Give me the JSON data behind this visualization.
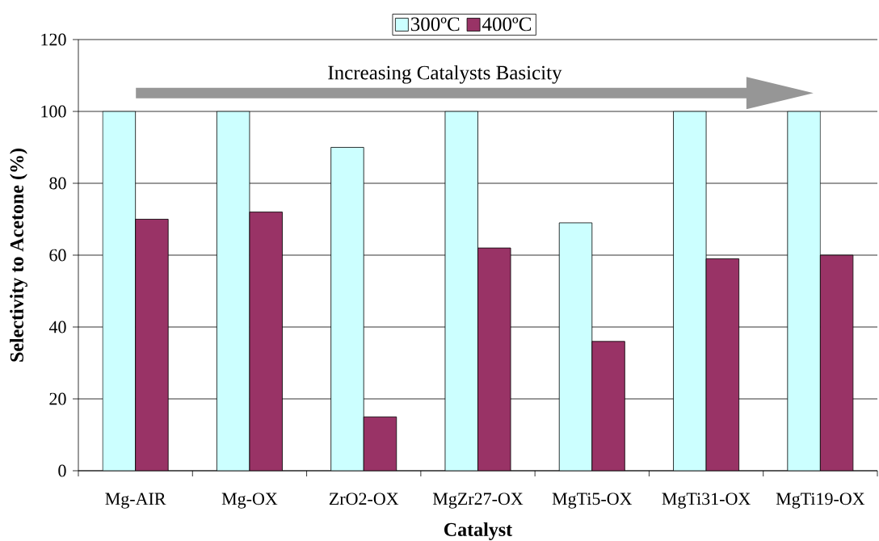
{
  "chart_data": {
    "type": "bar",
    "xlabel": "Catalyst",
    "ylabel": "Selectivity to Acetone (%)",
    "categories": [
      "Mg-AIR",
      "Mg-OX",
      "ZrO2-OX",
      "MgZr27-OX",
      "MgTi5-OX",
      "MgTi31-OX",
      "MgTi19-OX"
    ],
    "series": [
      {
        "name": "300ºC",
        "color": "#ccffff",
        "values": [
          100,
          100,
          90,
          100,
          69,
          100,
          100
        ]
      },
      {
        "name": "400ºC",
        "color": "#993366",
        "values": [
          70,
          72,
          15,
          62,
          36,
          59,
          60
        ]
      }
    ],
    "ylim": [
      0,
      120
    ],
    "yticks": [
      0,
      20,
      40,
      60,
      80,
      100,
      120
    ],
    "grid": "y",
    "legend": "top",
    "annotations": [
      "Increasing Catalysts Basicity"
    ]
  }
}
